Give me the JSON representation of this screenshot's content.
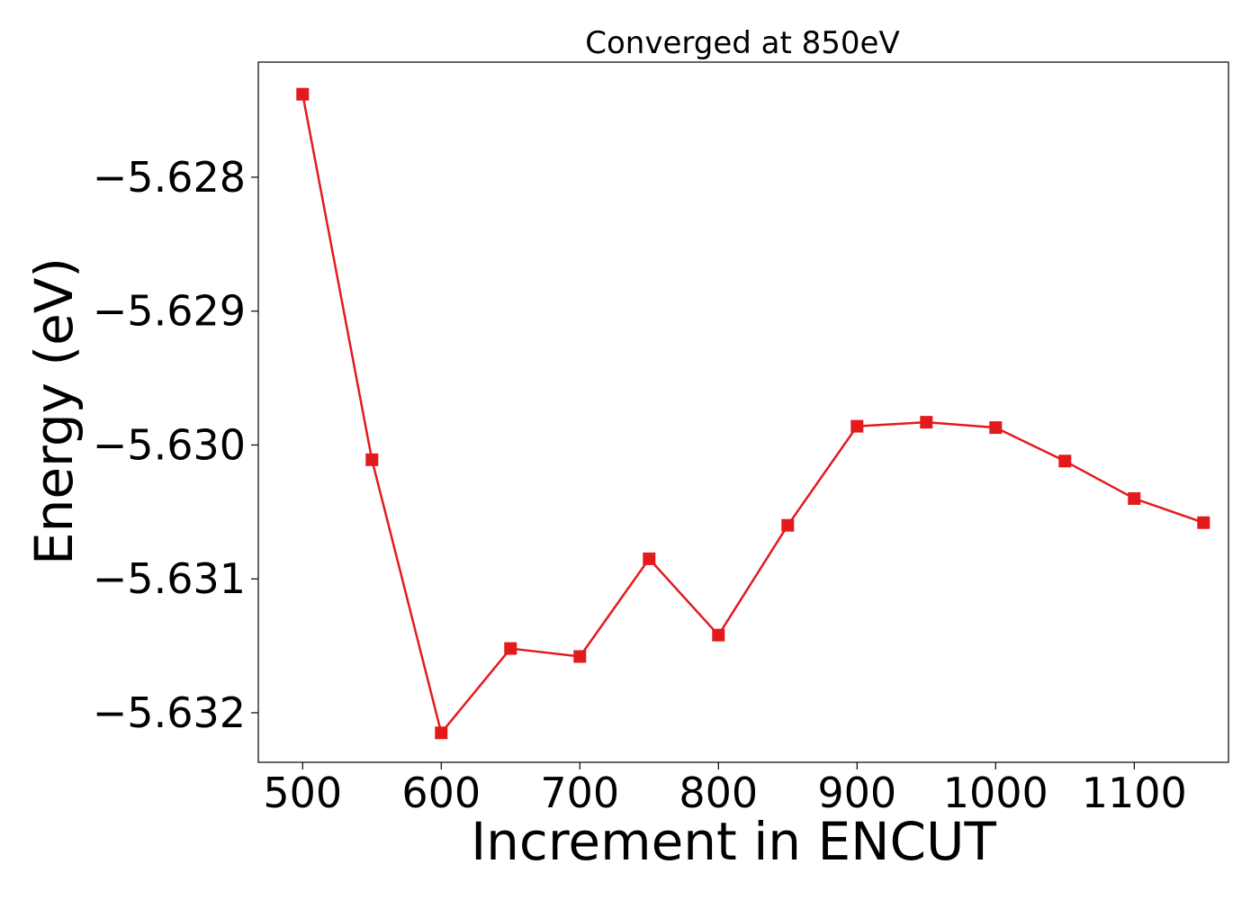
{
  "chart_data": {
    "type": "line",
    "title": "Converged at 850eV",
    "xlabel": "Increment in ENCUT",
    "ylabel": "Energy (eV)",
    "x": [
      500,
      550,
      600,
      650,
      700,
      750,
      800,
      850,
      900,
      950,
      1000,
      1050,
      1100,
      1150
    ],
    "series": [
      {
        "name": "",
        "values": [
          -5.62738,
          -5.63011,
          -5.63215,
          -5.63152,
          -5.63158,
          -5.63085,
          -5.63142,
          -5.6306,
          -5.62986,
          -5.62983,
          -5.62987,
          -5.63012,
          -5.6304,
          -5.63058
        ],
        "color": "#e31a1c",
        "marker": "square"
      }
    ],
    "xlim": [
      468,
      1168
    ],
    "ylim": [
      -5.63237,
      -5.62714
    ],
    "xticks": [
      500,
      600,
      700,
      800,
      900,
      1000,
      1100
    ],
    "xtick_labels": [
      "500",
      "600",
      "700",
      "800",
      "900",
      "1000",
      "1100"
    ],
    "yticks": [
      -5.632,
      -5.631,
      -5.63,
      -5.629,
      -5.628
    ],
    "ytick_labels": [
      "−5.632",
      "−5.631",
      "−5.630",
      "−5.629",
      "−5.628"
    ],
    "grid": false,
    "legend": "none"
  }
}
